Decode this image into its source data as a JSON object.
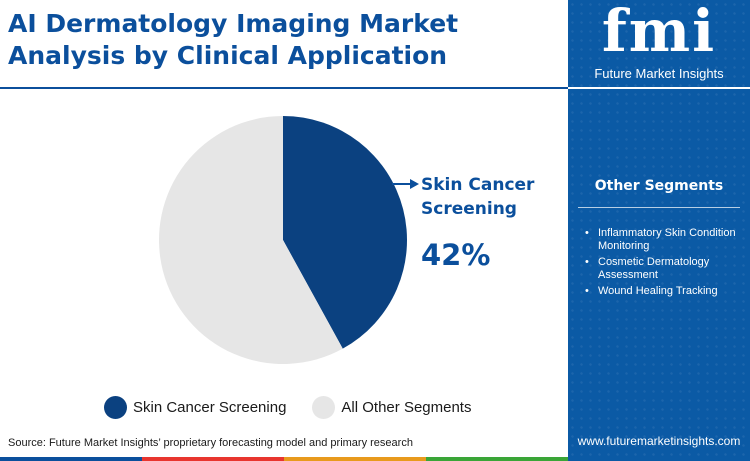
{
  "title": "AI Dermatology Imaging Market Analysis by Clinical Application",
  "chart_data": {
    "type": "pie",
    "slices": [
      {
        "label": "Skin Cancer Screening",
        "value": 42,
        "color": "#0b4180"
      },
      {
        "label": "All Other Segments",
        "value": 58,
        "color": "#e6e6e6"
      }
    ],
    "callout": {
      "label": "Skin Cancer Screening",
      "value_text": "42%"
    },
    "legend": [
      "Skin Cancer Screening",
      "All Other Segments"
    ],
    "legend_position": "bottom"
  },
  "source": "Source: Future Market Insights’ proprietary forecasting model and primary research",
  "sidebar": {
    "logo_text": "fmi",
    "logo_subtitle": "Future Market Insights",
    "segments_title": "Other Segments",
    "segments": [
      "Inflammatory Skin Condition Monitoring",
      "Cosmetic Dermatology Assessment",
      "Wound Healing Tracking"
    ],
    "website": "www.futuremarketinsights.com"
  },
  "colors": {
    "brand": "#0b4f9c",
    "sidebar": "#0b5aa5",
    "bar": [
      "#0b4f9c",
      "#e8352f",
      "#e89a1d",
      "#3aa537"
    ]
  }
}
